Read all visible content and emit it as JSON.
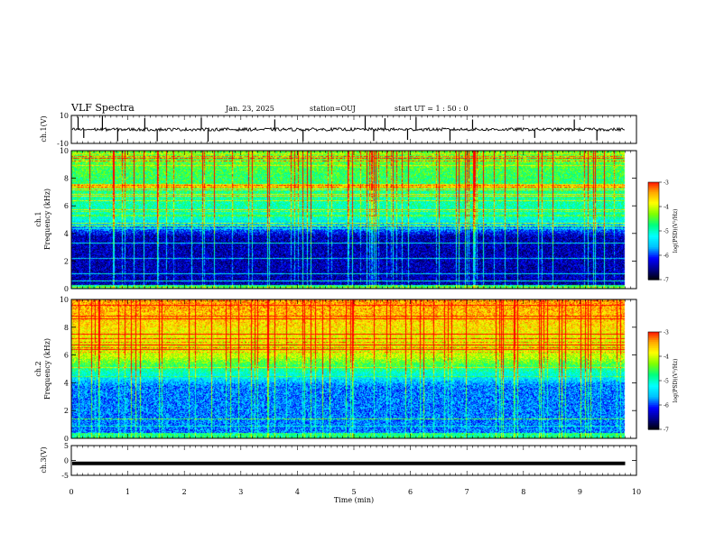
{
  "header": {
    "title": "VLF Spectra",
    "date": "Jan. 23, 2025",
    "station": "station=OUJ",
    "start": "start  UT  =    1  : 50 : 0"
  },
  "chart_data": [
    {
      "type": "line",
      "panel": "ch1-waveform",
      "ylabel": "ch.1(V)",
      "ylim": [
        -10,
        10
      ],
      "y_ticks": [
        "10",
        "-10"
      ],
      "baseline_value": 0,
      "spike_times_min": [
        0.12,
        0.22,
        0.55,
        0.82,
        1.3,
        1.52,
        2.3,
        2.42,
        3.6,
        4.1,
        5.2,
        5.35,
        5.55,
        5.95,
        6.1,
        6.7,
        7.1,
        8.2,
        8.9,
        9.3
      ],
      "color": "#000000"
    },
    {
      "type": "heatmap",
      "panel": "ch1-spectrogram",
      "ylabel": "ch.1\nFrequency (kHz)",
      "ylim": [
        0,
        10
      ],
      "y_ticks": [
        "0",
        "2",
        "4",
        "6",
        "8",
        "10"
      ],
      "colorbar": {
        "label": "log(PSD)(V²/Hz)",
        "ticks": [
          "-3",
          "-4",
          "-5",
          "-6",
          "-7"
        ],
        "range": [
          -7,
          -3
        ]
      },
      "description": "background level high above ~5 kHz, low (dark blue) band 0.5–4 kHz, horizontal interference lines"
    },
    {
      "type": "heatmap",
      "panel": "ch2-spectrogram",
      "ylabel": "ch.2\nFrequency (kHz)",
      "ylim": [
        0,
        10
      ],
      "y_ticks": [
        "0",
        "2",
        "4",
        "6",
        "8",
        "10"
      ],
      "colorbar": {
        "label": "log(PSD)(V²/Hz)",
        "ticks": [
          "-3",
          "-4",
          "-5",
          "-6",
          "-7"
        ],
        "range": [
          -7,
          -3
        ]
      },
      "description": "strong (red/yellow) above ~6 kHz, blue/cyan below ~4 kHz"
    },
    {
      "type": "line",
      "panel": "ch3-waveform",
      "ylabel": "ch.3(V)",
      "ylim": [
        -5,
        5
      ],
      "y_ticks": [
        "5",
        "0",
        "-5"
      ],
      "baseline_value": -1,
      "color": "#000000"
    }
  ],
  "x_axis": {
    "label": "Time  (min)",
    "ticks": [
      "0",
      "1",
      "2",
      "3",
      "4",
      "5",
      "6",
      "7",
      "8",
      "9",
      "10"
    ],
    "xlim": [
      0,
      10
    ],
    "data_end": 9.8
  },
  "colormap": [
    "#000000",
    "#00008b",
    "#0000ff",
    "#00bfff",
    "#00ffff",
    "#00ff7f",
    "#7fff00",
    "#ffff00",
    "#ffa500",
    "#ff0000",
    "#ffffff"
  ]
}
